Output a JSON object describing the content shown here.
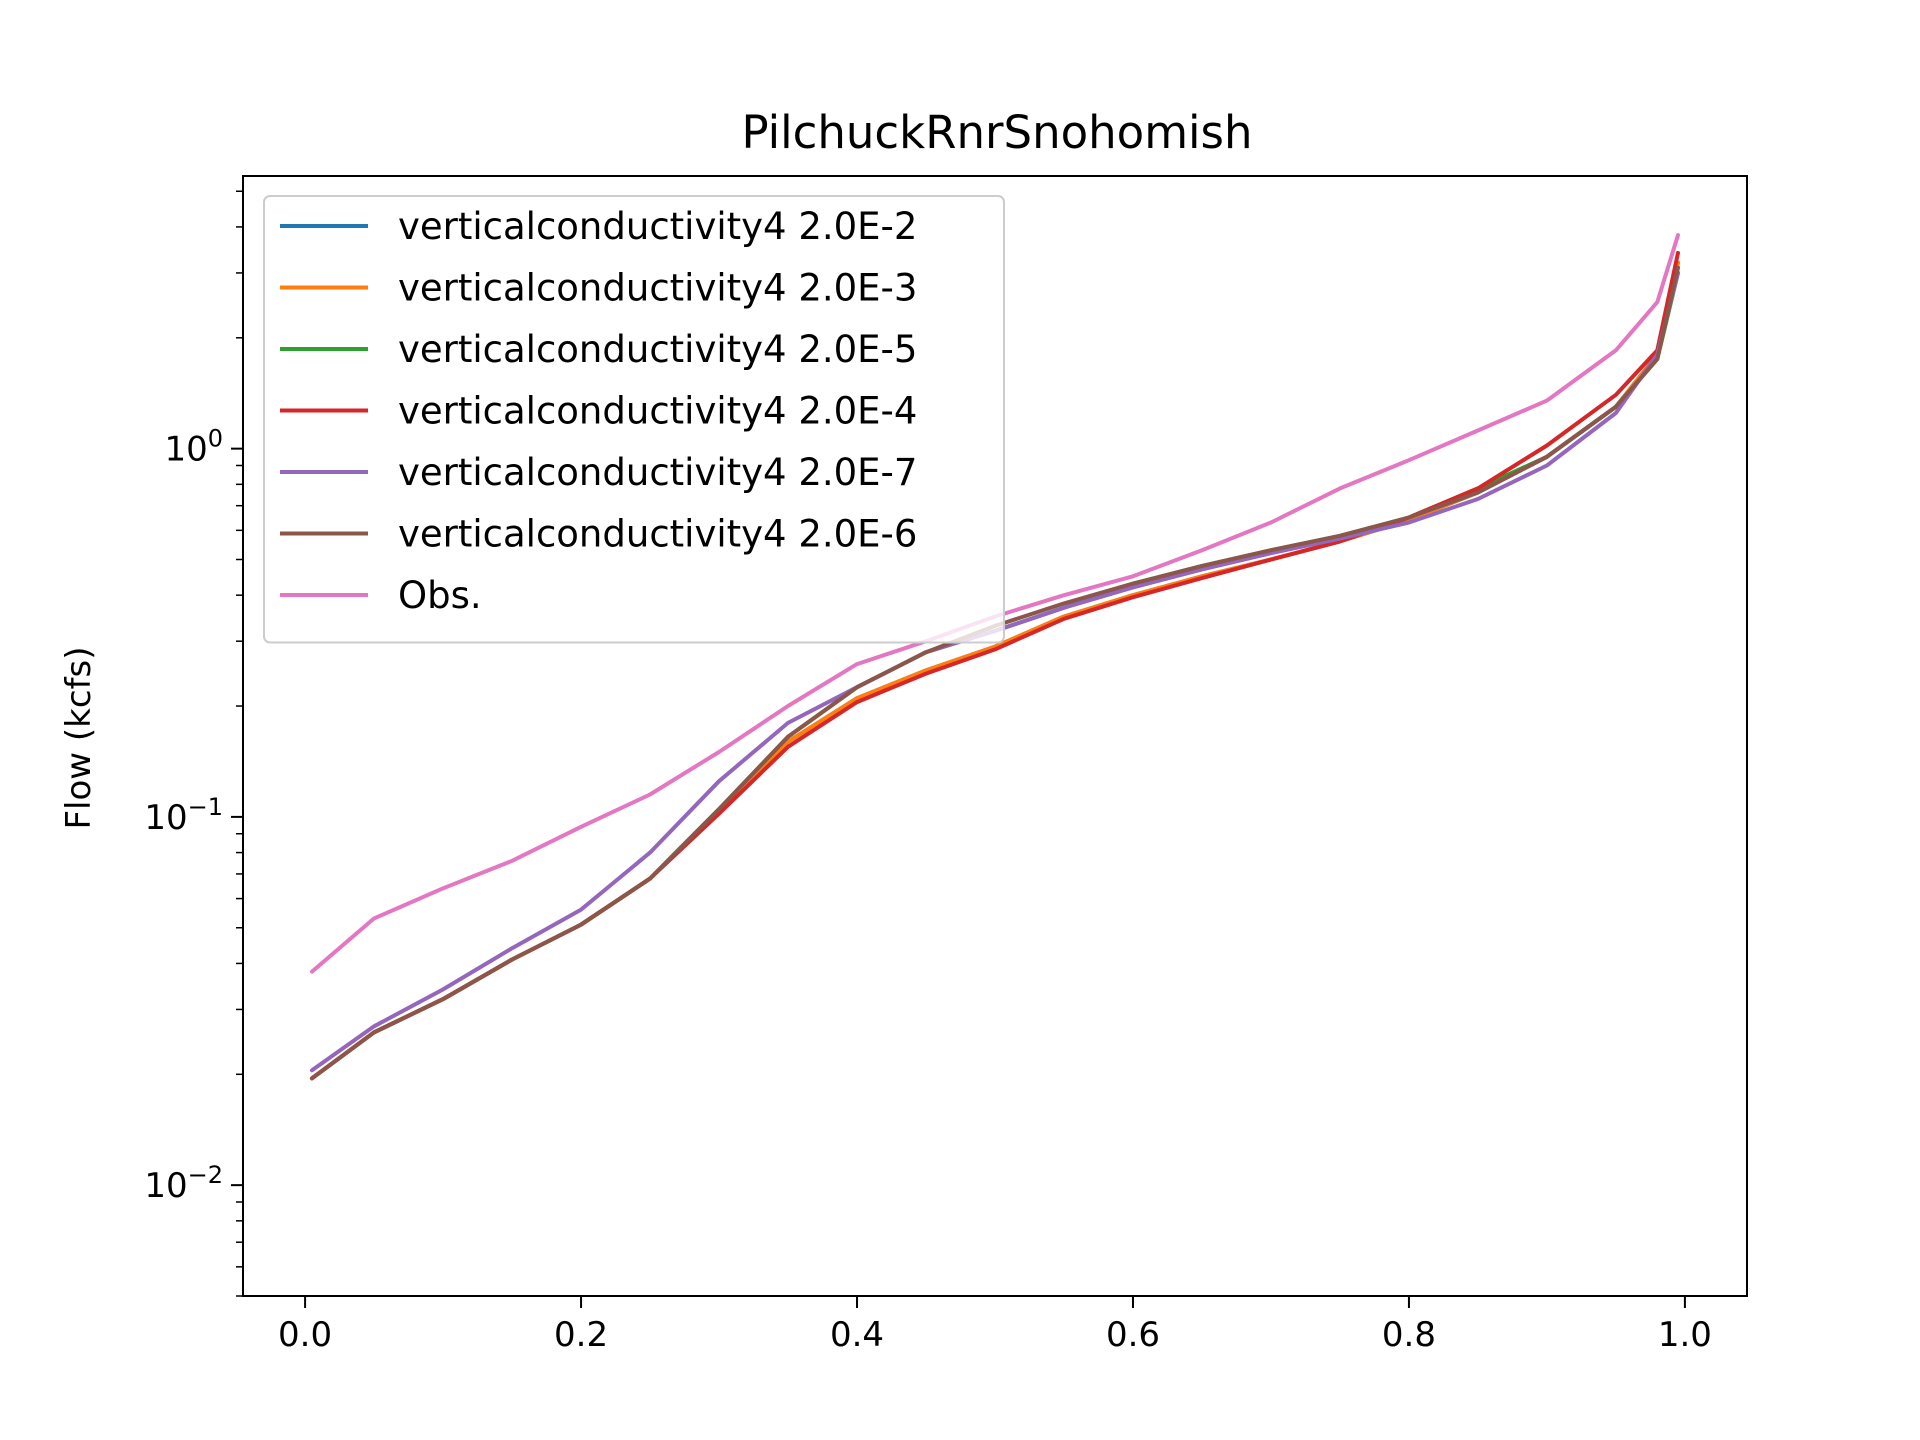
{
  "chart_data": {
    "type": "line",
    "title": "PilchuckRnrSnohomish",
    "xlabel": "",
    "ylabel": "Flow (kcfs)",
    "xlim": [
      -0.045,
      1.045
    ],
    "ylim": [
      0.005,
      5.5
    ],
    "yscale": "log",
    "x_ticks": [
      {
        "value": 0.0,
        "label": "0.0"
      },
      {
        "value": 0.2,
        "label": "0.2"
      },
      {
        "value": 0.4,
        "label": "0.4"
      },
      {
        "value": 0.6,
        "label": "0.6"
      },
      {
        "value": 0.8,
        "label": "0.8"
      },
      {
        "value": 1.0,
        "label": "1.0"
      }
    ],
    "y_ticks": [
      {
        "value": 0.01,
        "base": "10",
        "exp": "−2"
      },
      {
        "value": 0.1,
        "base": "10",
        "exp": "−1"
      },
      {
        "value": 1,
        "base": "10",
        "exp": "0"
      }
    ],
    "legend_position": "top-left",
    "grid": false,
    "x": [
      0.005,
      0.05,
      0.1,
      0.15,
      0.2,
      0.25,
      0.3,
      0.35,
      0.4,
      0.45,
      0.5,
      0.55,
      0.6,
      0.65,
      0.7,
      0.75,
      0.8,
      0.85,
      0.9,
      0.95,
      0.98,
      0.995
    ],
    "series": [
      {
        "name": "verticalconductivity4 2.0E-2",
        "color": "#1f77b4",
        "values": [
          0.0195,
          0.026,
          0.032,
          0.041,
          0.051,
          0.068,
          0.105,
          0.16,
          0.21,
          0.25,
          0.29,
          0.35,
          0.4,
          0.45,
          0.5,
          0.56,
          0.64,
          0.76,
          0.95,
          1.3,
          1.8,
          3.2
        ]
      },
      {
        "name": "verticalconductivity4 2.0E-3",
        "color": "#ff7f0e",
        "values": [
          0.0195,
          0.026,
          0.032,
          0.041,
          0.051,
          0.068,
          0.105,
          0.16,
          0.21,
          0.25,
          0.29,
          0.35,
          0.4,
          0.45,
          0.5,
          0.56,
          0.64,
          0.76,
          0.95,
          1.3,
          1.8,
          3.2
        ]
      },
      {
        "name": "verticalconductivity4 2.0E-5",
        "color": "#2ca02c",
        "values": [
          0.0195,
          0.026,
          0.032,
          0.041,
          0.051,
          0.068,
          0.105,
          0.165,
          0.225,
          0.28,
          0.32,
          0.37,
          0.43,
          0.48,
          0.53,
          0.58,
          0.65,
          0.78,
          0.95,
          1.3,
          1.75,
          3.0
        ]
      },
      {
        "name": "verticalconductivity4 2.0E-4",
        "color": "#d62728",
        "values": [
          0.0195,
          0.026,
          0.032,
          0.041,
          0.051,
          0.068,
          0.102,
          0.155,
          0.205,
          0.245,
          0.285,
          0.345,
          0.395,
          0.445,
          0.5,
          0.56,
          0.65,
          0.78,
          1.02,
          1.4,
          1.85,
          3.4
        ]
      },
      {
        "name": "verticalconductivity4 2.0E-7",
        "color": "#9467bd",
        "values": [
          0.0205,
          0.027,
          0.034,
          0.044,
          0.056,
          0.08,
          0.125,
          0.18,
          0.225,
          0.28,
          0.32,
          0.37,
          0.42,
          0.47,
          0.52,
          0.57,
          0.63,
          0.73,
          0.9,
          1.25,
          1.8,
          3.0
        ]
      },
      {
        "name": "verticalconductivity4 2.0E-6",
        "color": "#8c564b",
        "values": [
          0.0195,
          0.026,
          0.032,
          0.041,
          0.051,
          0.068,
          0.105,
          0.165,
          0.225,
          0.28,
          0.33,
          0.38,
          0.43,
          0.48,
          0.53,
          0.58,
          0.65,
          0.76,
          0.95,
          1.3,
          1.75,
          3.1
        ]
      },
      {
        "name": "Obs.",
        "color": "#e377c2",
        "values": [
          0.038,
          0.053,
          0.064,
          0.076,
          0.094,
          0.115,
          0.15,
          0.2,
          0.26,
          0.3,
          0.35,
          0.4,
          0.45,
          0.53,
          0.63,
          0.78,
          0.93,
          1.12,
          1.35,
          1.85,
          2.5,
          3.8
        ]
      }
    ]
  }
}
